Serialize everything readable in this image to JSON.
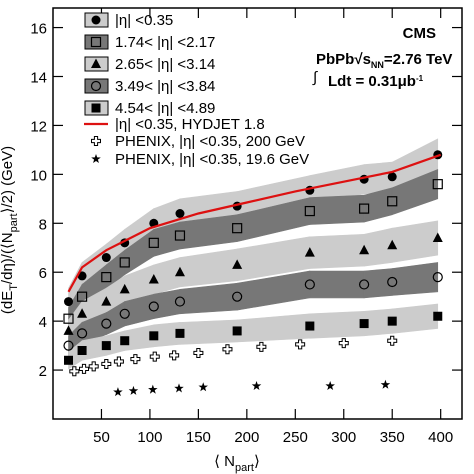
{
  "chart_data": {
    "type": "scatter",
    "x_label": [
      "⟨ N",
      "part",
      "⟩"
    ],
    "y_label": [
      "(dE",
      "T",
      "/dη)/(⟨N",
      "part",
      "⟩/2) (GeV)"
    ],
    "annotations": {
      "experiment": "CMS",
      "system": "PbPb",
      "energy_sub": "NN",
      "energy": "=2.76 TeV",
      "lumi": "Ldt = 0.31μb",
      "lumi_sup": "-1"
    },
    "xlim": [
      0,
      422
    ],
    "ylim": [
      0,
      16.8
    ],
    "xticks": [
      50,
      100,
      150,
      200,
      250,
      300,
      350,
      400
    ],
    "yticks": [
      2,
      4,
      6,
      8,
      10,
      12,
      14,
      16
    ],
    "series": [
      {
        "name": "|η| <0.35",
        "marker": "circle",
        "color": "#000000",
        "band_color": "#cccccc",
        "x": [
          16,
          30,
          55,
          74,
          104,
          131,
          190,
          265,
          321,
          350,
          397
        ],
        "values": [
          4.8,
          5.85,
          6.6,
          7.2,
          8.0,
          8.4,
          8.7,
          9.35,
          9.8,
          9.9,
          10.8
        ],
        "errors": [
          0.55,
          0.55,
          0.55,
          0.55,
          0.6,
          0.6,
          0.6,
          0.6,
          0.6,
          0.6,
          0.65
        ]
      },
      {
        "name": "1.74< |η| <2.17",
        "marker": "open-square",
        "color": "#000000",
        "band_color": "#777777",
        "x": [
          16,
          30,
          55,
          74,
          104,
          131,
          190,
          265,
          321,
          350,
          397
        ],
        "values": [
          4.1,
          5.0,
          5.8,
          6.4,
          7.2,
          7.5,
          7.8,
          8.5,
          8.6,
          8.9,
          9.6
        ],
        "errors": [
          0.45,
          0.5,
          0.5,
          0.5,
          0.55,
          0.55,
          0.55,
          0.55,
          0.55,
          0.55,
          0.6
        ]
      },
      {
        "name": "2.65< |η| <3.14",
        "marker": "triangle",
        "color": "#000000",
        "band_color": "#cccccc",
        "x": [
          16,
          30,
          55,
          74,
          104,
          131,
          190,
          265,
          321,
          350,
          397
        ],
        "values": [
          3.6,
          4.3,
          4.8,
          5.3,
          5.7,
          6.0,
          6.3,
          6.8,
          6.9,
          7.1,
          7.4
        ],
        "errors": [
          0.45,
          0.5,
          0.55,
          0.55,
          0.6,
          0.6,
          0.65,
          0.65,
          0.65,
          0.7,
          0.7
        ]
      },
      {
        "name": "3.49< |η| <3.84",
        "marker": "open-circle",
        "color": "#000000",
        "band_color": "#777777",
        "x": [
          16,
          30,
          55,
          74,
          104,
          131,
          190,
          265,
          321,
          350,
          397
        ],
        "values": [
          3.0,
          3.5,
          3.9,
          4.3,
          4.6,
          4.8,
          5.0,
          5.5,
          5.5,
          5.6,
          5.8
        ],
        "errors": [
          0.4,
          0.45,
          0.45,
          0.5,
          0.5,
          0.5,
          0.55,
          0.55,
          0.55,
          0.55,
          0.6
        ]
      },
      {
        "name": "4.54< |η| <4.89",
        "marker": "square",
        "color": "#000000",
        "band_color": "#cccccc",
        "x": [
          16,
          30,
          55,
          74,
          104,
          131,
          190,
          265,
          321,
          350,
          397
        ],
        "values": [
          2.4,
          2.8,
          3.0,
          3.2,
          3.4,
          3.5,
          3.6,
          3.8,
          3.9,
          4.0,
          4.2
        ],
        "errors": [
          0.35,
          0.4,
          0.4,
          0.4,
          0.45,
          0.45,
          0.45,
          0.5,
          0.5,
          0.5,
          0.5
        ]
      },
      {
        "name": "|η| <0.35, HYDJET 1.8",
        "marker": "line",
        "color": "#dd1111",
        "x": [
          16,
          30,
          55,
          100,
          150,
          200,
          250,
          300,
          350,
          400
        ],
        "values": [
          5.2,
          6.2,
          6.9,
          7.8,
          8.4,
          8.85,
          9.3,
          9.7,
          10.1,
          10.8
        ]
      },
      {
        "name": "PHENIX, |η| <0.35, 200 GeV",
        "marker": "cross",
        "color": "#000000",
        "x": [
          22,
          32,
          42,
          55,
          68,
          85,
          105,
          125,
          150,
          180,
          215,
          255,
          300,
          350
        ],
        "values": [
          1.95,
          2.05,
          2.15,
          2.25,
          2.35,
          2.45,
          2.55,
          2.6,
          2.7,
          2.85,
          2.95,
          3.05,
          3.1,
          3.2
        ]
      },
      {
        "name": "PHENIX, |η| <0.35, 19.6 GeV",
        "marker": "star",
        "color": "#000000",
        "x": [
          67,
          83,
          103,
          130,
          155,
          210,
          286,
          343
        ],
        "values": [
          1.1,
          1.15,
          1.2,
          1.25,
          1.3,
          1.35,
          1.35,
          1.4
        ]
      }
    ]
  }
}
